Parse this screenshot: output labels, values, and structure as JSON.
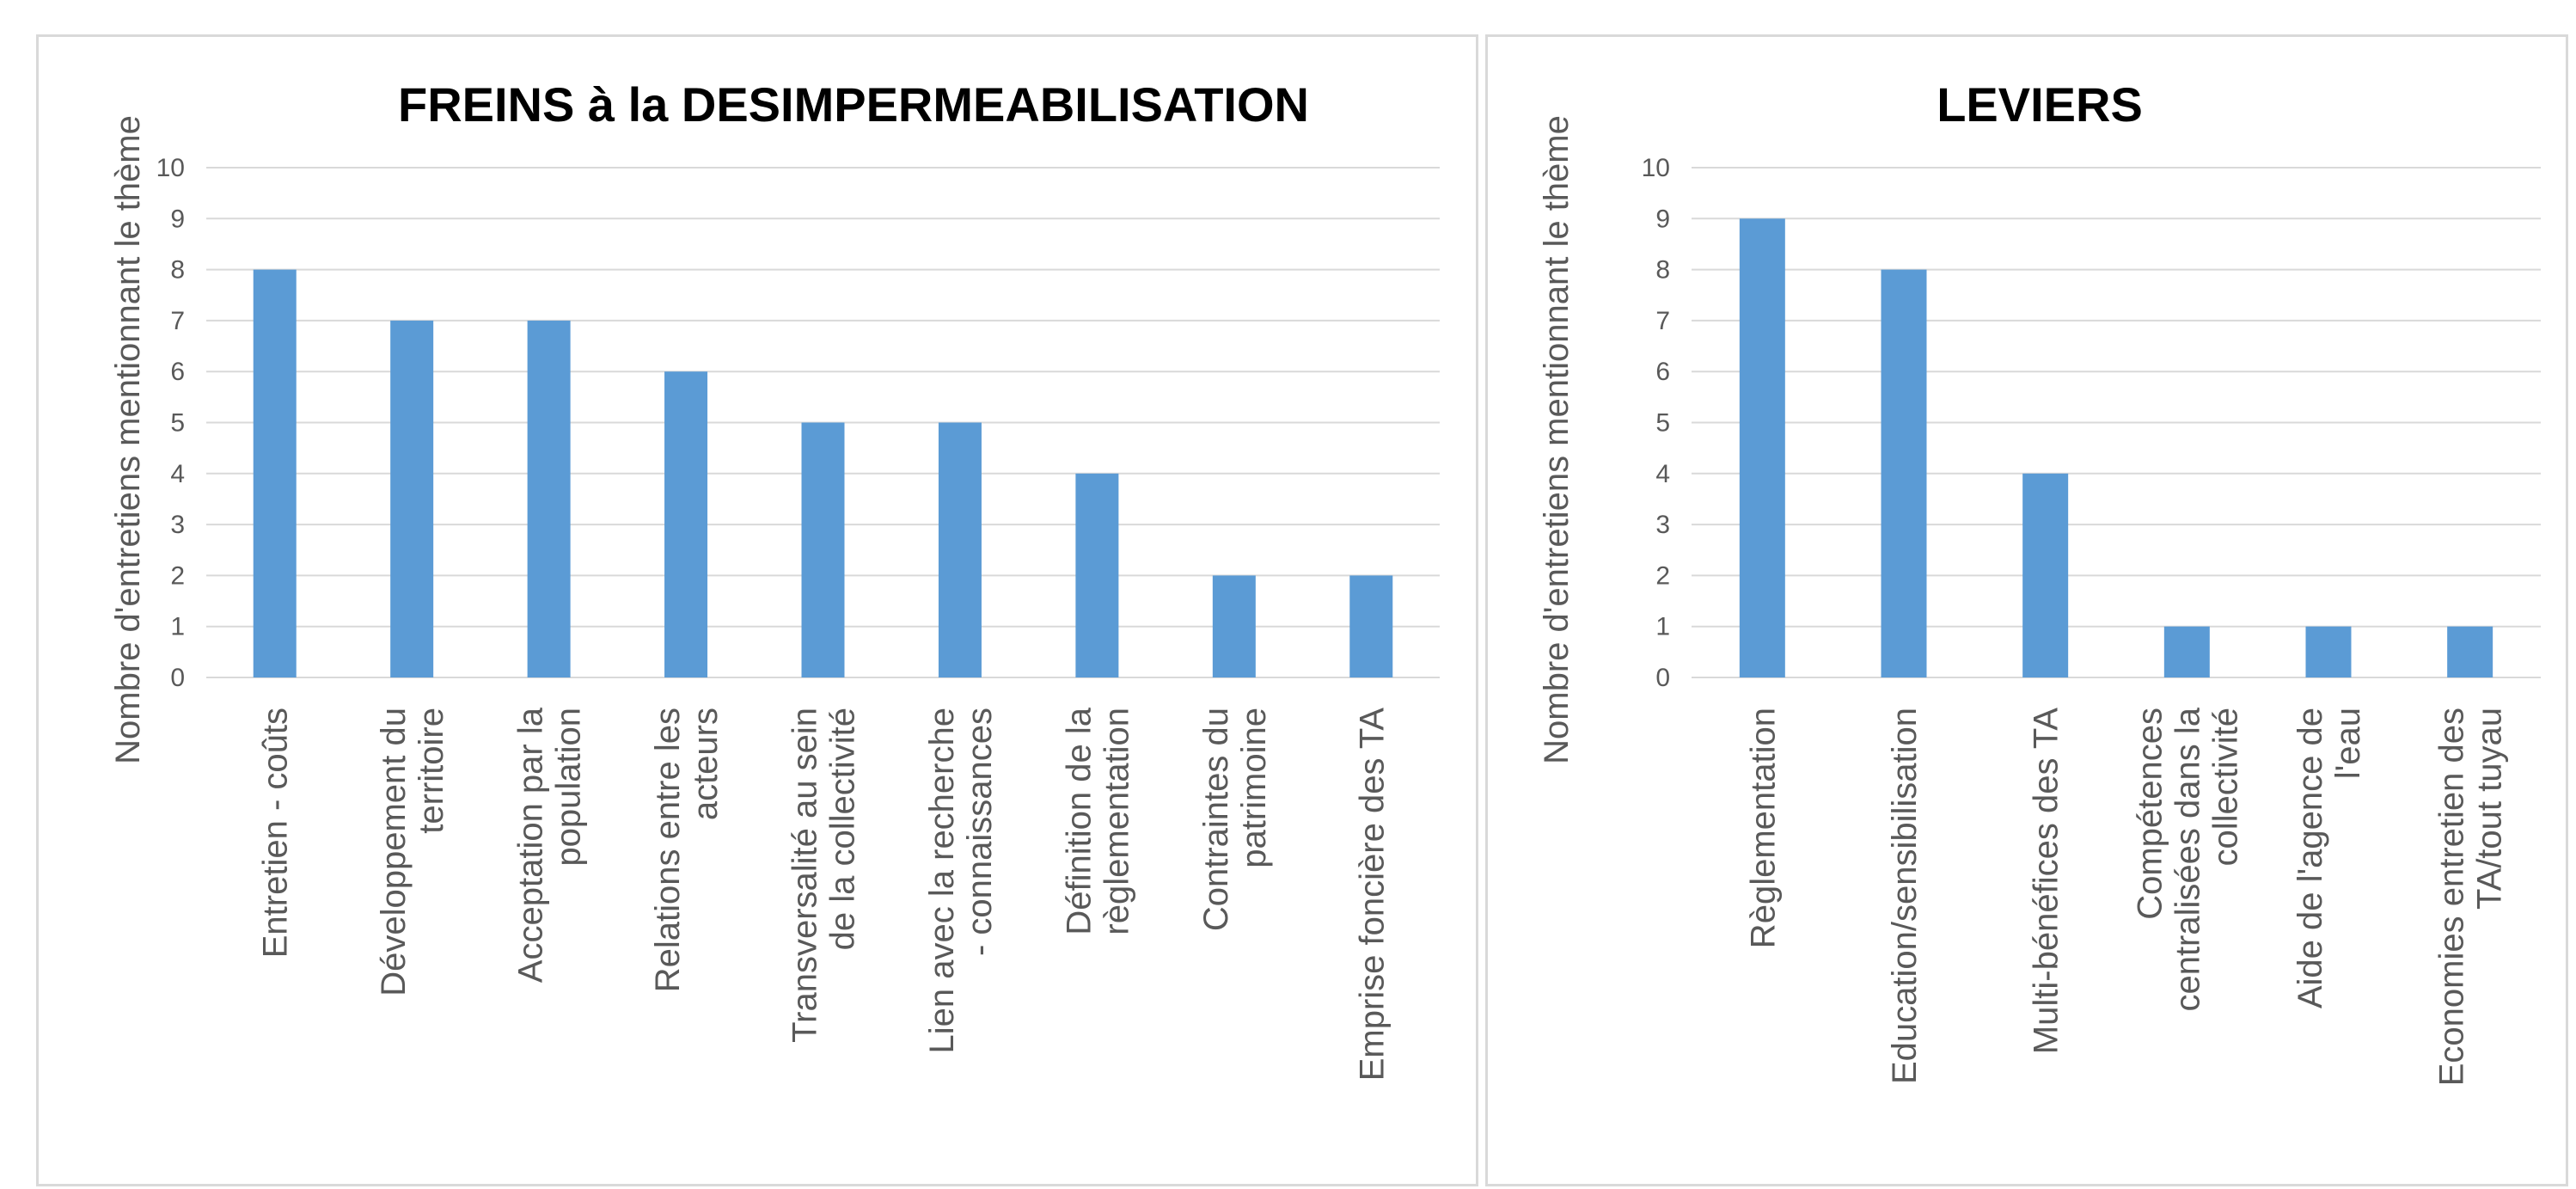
{
  "chart_data": [
    {
      "type": "bar",
      "title": "FREINS à la DESIMPERMEABILISATION",
      "ylabel": "Nombre d'entretiens mentionnant le thème",
      "xlabel": "",
      "ylim": [
        0,
        10
      ],
      "yticks": [
        0,
        1,
        2,
        3,
        4,
        5,
        6,
        7,
        8,
        9,
        10
      ],
      "grid": true,
      "bar_color": "#5b9bd5",
      "grid_color": "#d9d9d9",
      "categories": [
        "Entretien - coûts",
        "Développement du territoire",
        "Acceptation par la population",
        "Relations entre les acteurs",
        "Transversalité au sein de la collectivité",
        "Lien avec la recherche - connaissances",
        "Définition de la règlementation",
        "Contraintes du patrimoine",
        "Emprise foncière des TA"
      ],
      "values": [
        8,
        7,
        7,
        6,
        5,
        5,
        4,
        2,
        2
      ]
    },
    {
      "type": "bar",
      "title": "LEVIERS",
      "ylabel": "Nombre d'entretiens mentionnant le thème",
      "xlabel": "",
      "ylim": [
        0,
        10
      ],
      "yticks": [
        0,
        1,
        2,
        3,
        4,
        5,
        6,
        7,
        8,
        9,
        10
      ],
      "grid": true,
      "bar_color": "#5b9bd5",
      "grid_color": "#d9d9d9",
      "categories": [
        "Règlementation",
        "Education/sensibilisation",
        "Multi-bénéfices des TA",
        "Compétences centralisées dans la collectivité",
        "Aide de l'agence de l'eau",
        "Economies entretien des TA/tout tuyau"
      ],
      "values": [
        9,
        8,
        4,
        1,
        1,
        1
      ]
    }
  ]
}
